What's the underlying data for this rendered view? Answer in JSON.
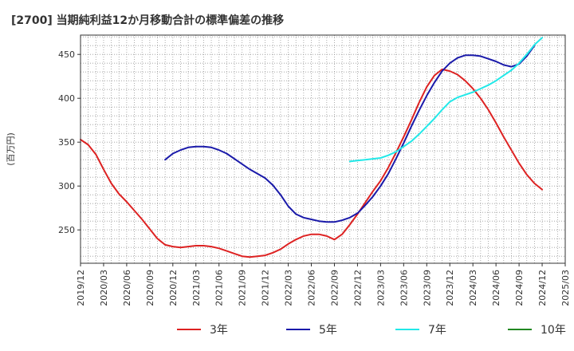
{
  "chart_data": {
    "type": "line",
    "title": "[2700]  当期純利益12か月移動合計の標準偏差の推移",
    "ylabel": "(百万円)",
    "xlabel": "",
    "ylim": [
      212,
      472
    ],
    "yticks": [
      250,
      300,
      350,
      400,
      450
    ],
    "xlim": [
      "2019-12",
      "2025-03"
    ],
    "xticks": [
      "2019/12",
      "2020/03",
      "2020/06",
      "2020/09",
      "2020/12",
      "2021/03",
      "2021/06",
      "2021/09",
      "2021/12",
      "2022/03",
      "2022/06",
      "2022/09",
      "2022/12",
      "2023/03",
      "2023/06",
      "2023/09",
      "2023/12",
      "2024/03",
      "2024/06",
      "2024/09",
      "2024/12",
      "2025/03"
    ],
    "grid": true,
    "legend_position": "bottom",
    "series": [
      {
        "name": "3年",
        "color": "#dd2222",
        "points": [
          [
            "2019-12",
            353
          ],
          [
            "2020-01",
            347
          ],
          [
            "2020-02",
            336
          ],
          [
            "2020-03",
            319
          ],
          [
            "2020-04",
            303
          ],
          [
            "2020-05",
            291
          ],
          [
            "2020-06",
            282
          ],
          [
            "2020-07",
            272
          ],
          [
            "2020-08",
            262
          ],
          [
            "2020-09",
            251
          ],
          [
            "2020-10",
            240
          ],
          [
            "2020-11",
            233
          ],
          [
            "2020-12",
            231
          ],
          [
            "2021-01",
            230
          ],
          [
            "2021-02",
            231
          ],
          [
            "2021-03",
            232
          ],
          [
            "2021-04",
            232
          ],
          [
            "2021-05",
            231
          ],
          [
            "2021-06",
            229
          ],
          [
            "2021-07",
            226
          ],
          [
            "2021-08",
            223
          ],
          [
            "2021-09",
            220
          ],
          [
            "2021-10",
            219
          ],
          [
            "2021-11",
            220
          ],
          [
            "2021-12",
            221
          ],
          [
            "2022-01",
            224
          ],
          [
            "2022-02",
            228
          ],
          [
            "2022-03",
            234
          ],
          [
            "2022-04",
            239
          ],
          [
            "2022-05",
            243
          ],
          [
            "2022-06",
            245
          ],
          [
            "2022-07",
            245
          ],
          [
            "2022-08",
            243
          ],
          [
            "2022-09",
            239
          ],
          [
            "2022-10",
            245
          ],
          [
            "2022-11",
            256
          ],
          [
            "2022-12",
            268
          ],
          [
            "2023-01",
            281
          ],
          [
            "2023-02",
            294
          ],
          [
            "2023-03",
            306
          ],
          [
            "2023-04",
            321
          ],
          [
            "2023-05",
            338
          ],
          [
            "2023-06",
            356
          ],
          [
            "2023-07",
            375
          ],
          [
            "2023-08",
            395
          ],
          [
            "2023-09",
            413
          ],
          [
            "2023-10",
            426
          ],
          [
            "2023-11",
            433
          ],
          [
            "2023-12",
            431
          ],
          [
            "2024-01",
            427
          ],
          [
            "2024-02",
            420
          ],
          [
            "2024-03",
            411
          ],
          [
            "2024-04",
            400
          ],
          [
            "2024-05",
            387
          ],
          [
            "2024-06",
            372
          ],
          [
            "2024-07",
            356
          ],
          [
            "2024-08",
            341
          ],
          [
            "2024-09",
            326
          ],
          [
            "2024-10",
            313
          ],
          [
            "2024-11",
            303
          ],
          [
            "2024-12",
            296
          ]
        ]
      },
      {
        "name": "5年",
        "color": "#1a1aaa",
        "points": [
          [
            "2020-11",
            330
          ],
          [
            "2020-12",
            337
          ],
          [
            "2021-01",
            341
          ],
          [
            "2021-02",
            344
          ],
          [
            "2021-03",
            345
          ],
          [
            "2021-04",
            345
          ],
          [
            "2021-05",
            344
          ],
          [
            "2021-06",
            341
          ],
          [
            "2021-07",
            337
          ],
          [
            "2021-08",
            331
          ],
          [
            "2021-09",
            325
          ],
          [
            "2021-10",
            319
          ],
          [
            "2021-11",
            314
          ],
          [
            "2021-12",
            309
          ],
          [
            "2022-01",
            301
          ],
          [
            "2022-02",
            290
          ],
          [
            "2022-03",
            277
          ],
          [
            "2022-04",
            268
          ],
          [
            "2022-05",
            264
          ],
          [
            "2022-06",
            262
          ],
          [
            "2022-07",
            260
          ],
          [
            "2022-08",
            259
          ],
          [
            "2022-09",
            259
          ],
          [
            "2022-10",
            261
          ],
          [
            "2022-11",
            264
          ],
          [
            "2022-12",
            269
          ],
          [
            "2023-01",
            278
          ],
          [
            "2023-02",
            288
          ],
          [
            "2023-03",
            300
          ],
          [
            "2023-04",
            314
          ],
          [
            "2023-05",
            331
          ],
          [
            "2023-06",
            349
          ],
          [
            "2023-07",
            368
          ],
          [
            "2023-08",
            386
          ],
          [
            "2023-09",
            403
          ],
          [
            "2023-10",
            418
          ],
          [
            "2023-11",
            431
          ],
          [
            "2023-12",
            440
          ],
          [
            "2024-01",
            446
          ],
          [
            "2024-02",
            449
          ],
          [
            "2024-03",
            449
          ],
          [
            "2024-04",
            448
          ],
          [
            "2024-05",
            445
          ],
          [
            "2024-06",
            442
          ],
          [
            "2024-07",
            438
          ],
          [
            "2024-08",
            436
          ],
          [
            "2024-09",
            439
          ],
          [
            "2024-10",
            448
          ],
          [
            "2024-11",
            460
          ]
        ]
      },
      {
        "name": "7年",
        "color": "#22e8e8",
        "points": [
          [
            "2022-11",
            328
          ],
          [
            "2022-12",
            329
          ],
          [
            "2023-01",
            330
          ],
          [
            "2023-02",
            331
          ],
          [
            "2023-03",
            332
          ],
          [
            "2023-04",
            335
          ],
          [
            "2023-05",
            339
          ],
          [
            "2023-06",
            345
          ],
          [
            "2023-07",
            351
          ],
          [
            "2023-08",
            359
          ],
          [
            "2023-09",
            368
          ],
          [
            "2023-10",
            377
          ],
          [
            "2023-11",
            387
          ],
          [
            "2023-12",
            396
          ],
          [
            "2024-01",
            401
          ],
          [
            "2024-02",
            404
          ],
          [
            "2024-03",
            407
          ],
          [
            "2024-04",
            411
          ],
          [
            "2024-05",
            415
          ],
          [
            "2024-06",
            420
          ],
          [
            "2024-07",
            426
          ],
          [
            "2024-08",
            432
          ],
          [
            "2024-09",
            440
          ],
          [
            "2024-10",
            450
          ],
          [
            "2024-11",
            461
          ],
          [
            "2024-12",
            469
          ]
        ]
      },
      {
        "name": "10年",
        "color": "#228822",
        "points": []
      }
    ]
  }
}
